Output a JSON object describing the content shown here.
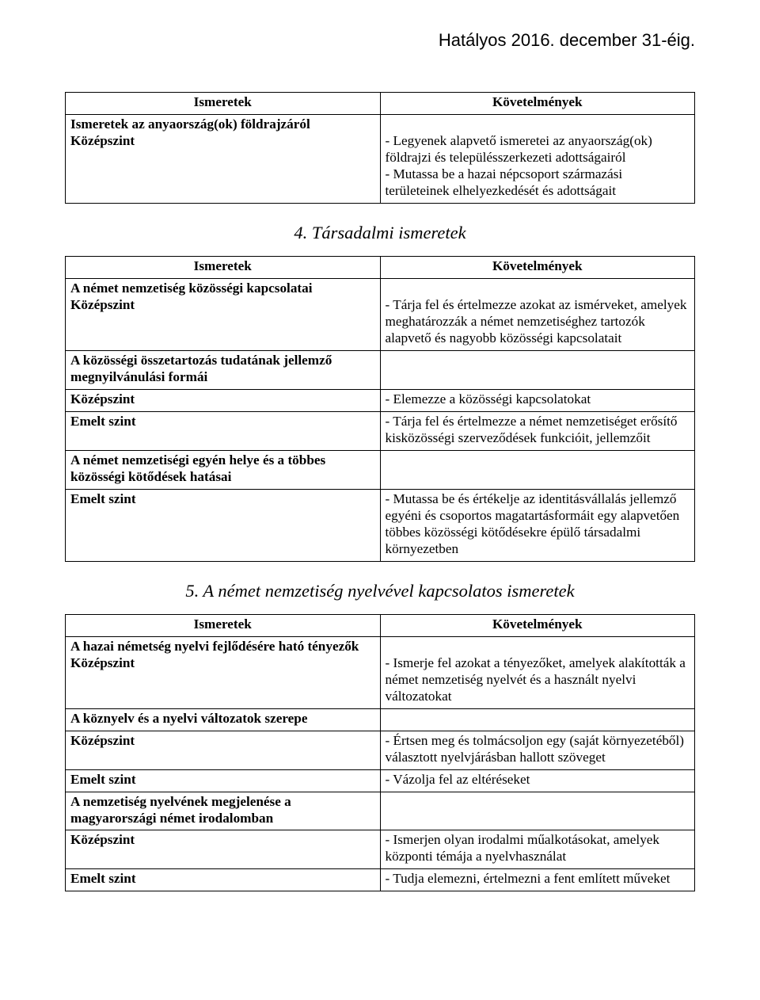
{
  "header_note": "Hatályos 2016. december 31-éig.",
  "col_header_left": "Ismeretek",
  "col_header_right": "Követelmények",
  "table1": {
    "r1_left_line1": "Ismeretek az anyaország(ok) földrajzáról",
    "r1_left_line2": "Középszint",
    "r1_right": "- Legyenek alapvető ismeretei az anyaország(ok) földrajzi és településszerkezeti adottságairól\n- Mutassa be a hazai népcsoport származási területeinek elhelyezkedését és adottságait"
  },
  "section4_title": "4. Társadalmi ismeretek",
  "table2": {
    "r1_left_line1": "A német nemzetiség közösségi kapcsolatai",
    "r1_left_line2": "Középszint",
    "r1_right": "- Tárja fel és értelmezze azokat az ismérveket, amelyek meghatározzák a német nemzetiséghez tartozók alapvető és nagyobb közösségi kapcsolatait",
    "r2_left": "A közösségi összetartozás tudatának jellemző megnyilvánulási formái",
    "r3_left": "Középszint",
    "r3_right": "- Elemezze a közösségi kapcsolatokat",
    "r4_left": "Emelt szint",
    "r4_right": "- Tárja fel és értelmezze a német nemzetiséget erősítő kisközösségi szerveződések funkcióit, jellemzőit",
    "r5_left": "A német nemzetiségi egyén helye és a többes közösségi kötődések hatásai",
    "r6_left": "Emelt szint",
    "r6_right": "- Mutassa be és értékelje az identitásvállalás jellemző egyéni és csoportos magatartásformáit egy alapvetően többes közösségi kötődésekre épülő társadalmi környezetben"
  },
  "section5_title": "5. A német nemzetiség nyelvével kapcsolatos ismeretek",
  "table3": {
    "r1_left_line1": "A hazai németség nyelvi fejlődésére ható tényezők",
    "r1_left_line2": "Középszint",
    "r1_right": "- Ismerje fel azokat a tényezőket, amelyek alakították a német nemzetiség nyelvét és a használt nyelvi változatokat",
    "r2_left": "A köznyelv és a nyelvi változatok szerepe",
    "r3_left": "Középszint",
    "r3_right": "- Értsen meg és tolmácsoljon egy (saját környezetéből) választott nyelvjárásban hallott szöveget",
    "r4_left": "Emelt szint",
    "r4_right": "- Vázolja fel az eltéréseket",
    "r5_left": "A nemzetiség nyelvének megjelenése a magyarországi német irodalomban",
    "r6_left": "Középszint",
    "r6_right": "- Ismerjen olyan irodalmi műalkotásokat, amelyek központi témája a nyelvhasználat",
    "r7_left": "Emelt szint",
    "r7_right": "- Tudja elemezni, értelmezni a fent említett műveket"
  }
}
